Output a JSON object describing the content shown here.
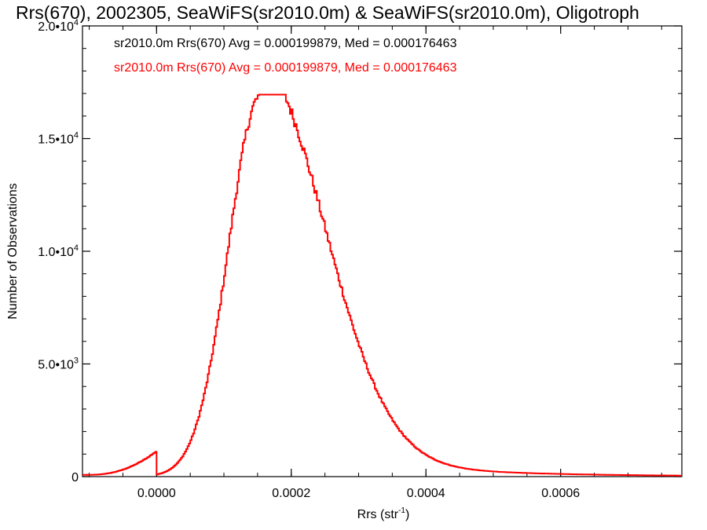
{
  "chart_data": {
    "type": "histogram-step",
    "title": "Rrs(670), 2002305, SeaWiFS(sr2010.0m) & SeaWiFS(sr2010.0m), Oligotroph",
    "xlabel": "Rrs (str",
    "xlabel_sup": "-1",
    "xlabel_close": ")",
    "ylabel": "Number of Observations",
    "xlim": [
      -0.00011,
      0.00078
    ],
    "ylim": [
      0,
      20000
    ],
    "x_ticks": [
      {
        "value": 0.0,
        "label": "0.0000"
      },
      {
        "value": 0.0002,
        "label": "0.0002"
      },
      {
        "value": 0.0004,
        "label": "0.0004"
      },
      {
        "value": 0.0006,
        "label": "0.0006"
      }
    ],
    "y_ticks": [
      {
        "value": 0,
        "label": "0",
        "sup": ""
      },
      {
        "value": 5000,
        "label": "5.0•10",
        "sup": "3"
      },
      {
        "value": 10000,
        "label": "1.0•10",
        "sup": "4"
      },
      {
        "value": 15000,
        "label": "1.5•10",
        "sup": "4"
      },
      {
        "value": 20000,
        "label": "2.0•10",
        "sup": "4"
      }
    ],
    "bin_width": 2e-06,
    "series": [
      {
        "name": "sr2010.0m Rrs(670) Avg = 0.000199879, Med = 0.000176463",
        "color": "#000000",
        "visible": false,
        "peak_x": 0.000155,
        "peak_y": 16900
      },
      {
        "name": "sr2010.0m Rrs(670) Avg = 0.000199879, Med = 0.000176463",
        "color": "#ff0000",
        "visible": true,
        "peak_x": 0.000155,
        "peak_y": 16900
      }
    ],
    "legend_placement": "top-left",
    "grid": false
  }
}
